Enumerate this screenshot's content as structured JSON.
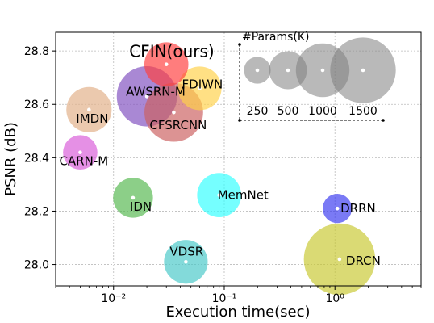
{
  "chart_data": {
    "type": "scatter",
    "xlabel": "Execution time(sec)",
    "ylabel": "PSNR (dB)",
    "x_scale": "log",
    "xlim": [
      0.003,
      6.0
    ],
    "ylim": [
      27.92,
      28.87
    ],
    "x_ticks": [
      {
        "value": 0.01,
        "label": "10⁻²"
      },
      {
        "value": 0.1,
        "label": "10⁻¹"
      },
      {
        "value": 1,
        "label": "10⁰"
      }
    ],
    "y_ticks": [
      {
        "value": 28.0,
        "label": "28.0"
      },
      {
        "value": 28.2,
        "label": "28.2"
      },
      {
        "value": 28.4,
        "label": "28.4"
      },
      {
        "value": 28.6,
        "label": "28.6"
      },
      {
        "value": 28.8,
        "label": "28.8"
      }
    ],
    "grid": true,
    "points": [
      {
        "name": "DRCN",
        "time": 1.1,
        "psnr": 28.02,
        "params_k": 1774,
        "color": "#c8c832"
      },
      {
        "name": "VDSR",
        "time": 0.045,
        "psnr": 28.01,
        "params_k": 665,
        "color": "#48c9c9"
      },
      {
        "name": "MemNet",
        "time": 0.09,
        "psnr": 28.26,
        "params_k": 677,
        "color": "#33ffff"
      },
      {
        "name": "DRRN",
        "time": 1.05,
        "psnr": 28.21,
        "params_k": 297,
        "color": "#3b3bf0"
      },
      {
        "name": "IDN",
        "time": 0.015,
        "psnr": 28.25,
        "params_k": 553,
        "color": "#55b84f"
      },
      {
        "name": "CARN-M",
        "time": 0.005,
        "psnr": 28.42,
        "params_k": 412,
        "color": "#d95cd9"
      },
      {
        "name": "IMDN",
        "time": 0.006,
        "psnr": 28.58,
        "params_k": 715,
        "color": "#e1b088"
      },
      {
        "name": "AWSRN-M",
        "time": 0.02,
        "psnr": 28.63,
        "params_k": 1263,
        "color": "#8050c0"
      },
      {
        "name": "CFSRCNN",
        "time": 0.035,
        "psnr": 28.57,
        "params_k": 1200,
        "color": "#cc6060"
      },
      {
        "name": "FDIWN",
        "time": 0.06,
        "psnr": 28.66,
        "params_k": 664,
        "color": "#ffd24a"
      },
      {
        "name": "CFIN(ours)",
        "time": 0.03,
        "psnr": 28.75,
        "params_k": 675,
        "color": "#ff4040"
      }
    ],
    "size_legend": {
      "title": "#Params(K)",
      "entries": [
        {
          "label": "250",
          "params_k": 250
        },
        {
          "label": "500",
          "params_k": 500
        },
        {
          "label": "1000",
          "params_k": 1000
        },
        {
          "label": "1500",
          "params_k": 1500
        }
      ]
    }
  }
}
